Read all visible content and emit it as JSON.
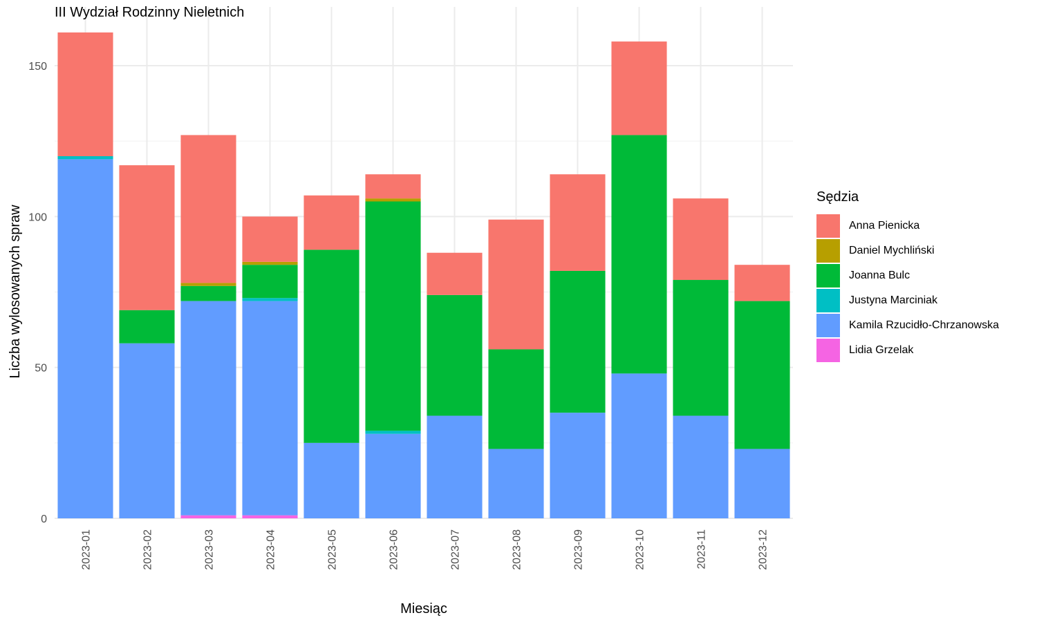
{
  "chart_data": {
    "type": "bar",
    "stacked": true,
    "title": "III Wydział Rodzinny Nieletnich",
    "xlabel": "Miesiąc",
    "ylabel": "Liczba wylosowanych spraw",
    "ylim": [
      0,
      161
    ],
    "yticks": [
      0,
      50,
      100,
      150
    ],
    "grid": true,
    "legend_position": "right",
    "legend_title": "Sędzia",
    "categories": [
      "2023-01",
      "2023-02",
      "2023-03",
      "2023-04",
      "2023-05",
      "2023-06",
      "2023-07",
      "2023-08",
      "2023-09",
      "2023-10",
      "2023-11",
      "2023-12"
    ],
    "series": [
      {
        "name": "Anna Pienicka",
        "color": "#F8766D",
        "values": [
          41,
          48,
          49,
          15,
          18,
          8,
          14,
          43,
          32,
          31,
          27,
          12
        ]
      },
      {
        "name": "Daniel Mychliński",
        "color": "#B79F00",
        "values": [
          0,
          0,
          1,
          1,
          0,
          1,
          0,
          0,
          0,
          0,
          0,
          0
        ]
      },
      {
        "name": "Joanna Bulc",
        "color": "#00BA38",
        "values": [
          0,
          11,
          5,
          11,
          64,
          76,
          40,
          33,
          47,
          79,
          45,
          49
        ]
      },
      {
        "name": "Justyna Marciniak",
        "color": "#00BFC4",
        "values": [
          1,
          0,
          0,
          1,
          0,
          1,
          0,
          0,
          0,
          0,
          0,
          0
        ]
      },
      {
        "name": "Kamila Rzucidło-Chrzanowska",
        "color": "#619CFF",
        "values": [
          119,
          58,
          71,
          71,
          25,
          28,
          34,
          23,
          35,
          48,
          34,
          23
        ]
      },
      {
        "name": "Lidia Grzelak",
        "color": "#F564E3",
        "values": [
          0,
          0,
          1,
          1,
          0,
          0,
          0,
          0,
          0,
          0,
          0,
          0
        ]
      }
    ]
  }
}
